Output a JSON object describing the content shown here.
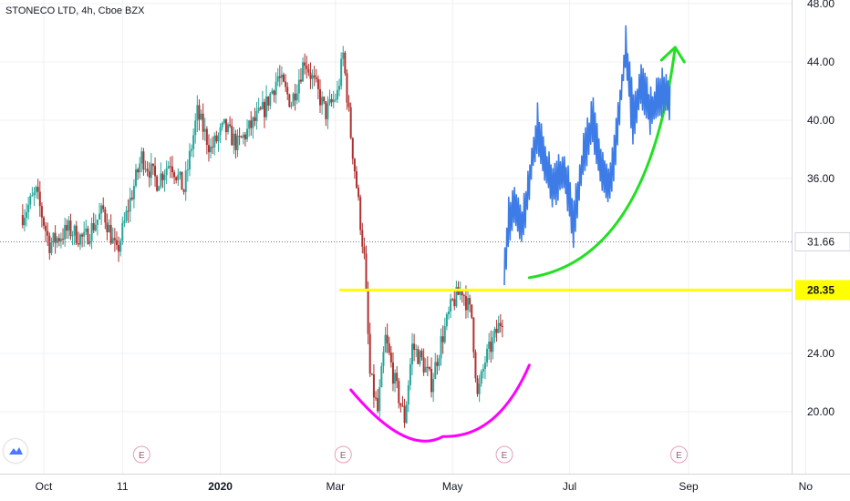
{
  "symbol": "STONECO LTD, 4h, Cboe BZX",
  "colors": {
    "up": "#26a69a",
    "down": "#b0302f",
    "projection": "#3d7be6",
    "resistance": "#ffff00",
    "cup_curve": "#ff00ff",
    "uptrend_curve": "#22e022",
    "grid": "#eef0f4"
  },
  "icons": [
    "tradingview-logo-icon",
    "earnings-marker-icon"
  ],
  "price_labels": {
    "last": "31.66",
    "resistance": "28.35"
  },
  "earnings_marker_label": "E",
  "chart_data": {
    "type": "candlestick",
    "title": "STONECO LTD, 4h, Cboe BZX",
    "xlabel": "",
    "ylabel": "",
    "x_ticks": [
      "Oct",
      "11",
      "2020",
      "Mar",
      "May",
      "Jul",
      "Sep",
      "No"
    ],
    "y_ticks": [
      "48.00",
      "44.00",
      "40.00",
      "36.00",
      "31.66",
      "28.35",
      "24.00",
      "20.00"
    ],
    "ylim": [
      17,
      48
    ],
    "grid": true,
    "series": [
      {
        "points": [
          [
            "2019-09-20",
            33.5
          ],
          [
            "2019-09-27",
            35.0
          ],
          [
            "2019-10-04",
            31.5
          ],
          [
            "2019-10-14",
            32.5
          ],
          [
            "2019-10-22",
            31.8
          ],
          [
            "2019-11-01",
            33.8
          ],
          [
            "2019-11-08",
            30.8
          ],
          [
            "2019-11-14",
            34.0
          ],
          [
            "2019-11-21",
            37.5
          ],
          [
            "2019-11-29",
            35.8
          ],
          [
            "2019-12-06",
            37.2
          ],
          [
            "2019-12-13",
            35.2
          ],
          [
            "2019-12-20",
            40.5
          ],
          [
            "2019-12-27",
            38.0
          ],
          [
            "2020-01-03",
            39.5
          ],
          [
            "2020-01-10",
            38.3
          ],
          [
            "2020-01-17",
            39.6
          ],
          [
            "2020-01-24",
            40.8
          ],
          [
            "2020-01-31",
            43.0
          ],
          [
            "2020-02-07",
            41.2
          ],
          [
            "2020-02-14",
            44.2
          ],
          [
            "2020-02-19",
            42.5
          ],
          [
            "2020-02-25",
            40.5
          ],
          [
            "2020-03-02",
            41.8
          ],
          [
            "2020-03-05",
            44.5
          ],
          [
            "2020-03-09",
            39.0
          ],
          [
            "2020-03-12",
            35.5
          ],
          [
            "2020-03-16",
            30.5
          ],
          [
            "2020-03-19",
            22.5
          ],
          [
            "2020-03-23",
            20.0
          ],
          [
            "2020-03-27",
            25.0
          ],
          [
            "2020-04-01",
            22.0
          ],
          [
            "2020-04-06",
            19.5
          ],
          [
            "2020-04-10",
            24.5
          ],
          [
            "2020-04-15",
            23.5
          ],
          [
            "2020-04-20",
            22.0
          ],
          [
            "2020-04-25",
            24.8
          ],
          [
            "2020-05-01",
            27.5
          ],
          [
            "2020-05-06",
            28.4
          ],
          [
            "2020-05-11",
            26.5
          ],
          [
            "2020-05-14",
            21.0
          ],
          [
            "2020-05-18",
            23.5
          ],
          [
            "2020-05-22",
            24.8
          ],
          [
            "2020-05-27",
            26.5
          ]
        ]
      },
      {
        "name": "",
        "points": [
          [
            "2020-05-28",
            29.5
          ],
          [
            "2020-05-30",
            33.0
          ],
          [
            "2020-06-02",
            34.5
          ],
          [
            "2020-06-06",
            32.5
          ],
          [
            "2020-06-10",
            36.0
          ],
          [
            "2020-06-14",
            39.5
          ],
          [
            "2020-06-18",
            37.0
          ],
          [
            "2020-06-23",
            35.5
          ],
          [
            "2020-06-28",
            36.5
          ],
          [
            "2020-07-03",
            33.0
          ],
          [
            "2020-07-08",
            37.5
          ],
          [
            "2020-07-13",
            40.0
          ],
          [
            "2020-07-18",
            36.5
          ],
          [
            "2020-07-22",
            35.5
          ],
          [
            "2020-07-26",
            39.5
          ],
          [
            "2020-07-30",
            45.0
          ],
          [
            "2020-08-03",
            40.0
          ],
          [
            "2020-08-07",
            42.5
          ],
          [
            "2020-08-12",
            40.5
          ],
          [
            "2020-08-17",
            42.0
          ],
          [
            "2020-08-22",
            41.5
          ]
        ]
      }
    ],
    "horizontal_lines": [
      {
        "value": 31.66,
        "label": "31.66"
      },
      {
        "value": 28.35,
        "label": "28.35"
      }
    ],
    "earnings_dates": [
      "2019-11-21",
      "2020-03-05",
      "2020-05-28",
      "2020-08-27"
    ],
    "annotations": [
      {
        "type": "cup-curve",
        "from": [
          "2020-03-09",
          21.5
        ],
        "bottom": [
          "2020-04-26",
          18.3
        ],
        "to": [
          "2020-06-10",
          23.2
        ]
      },
      {
        "type": "uptrend-arrow",
        "from": [
          "2020-06-10",
          29.2
        ],
        "to": [
          "2020-08-25",
          45.0
        ]
      }
    ]
  }
}
